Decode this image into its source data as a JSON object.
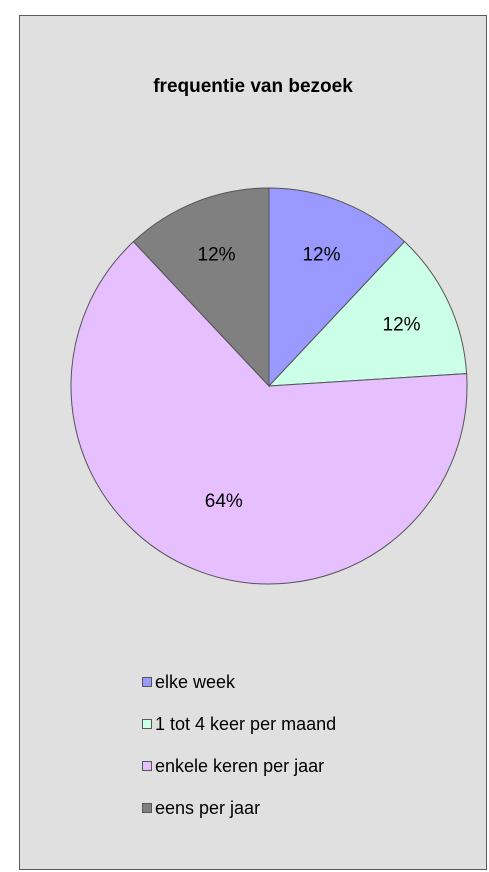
{
  "chart_data": {
    "type": "pie",
    "title": "frequentie van bezoek",
    "categories": [
      "elke week",
      "1 tot 4 keer per maand",
      "enkele keren per jaar",
      "eens per jaar"
    ],
    "values": [
      12,
      12,
      64,
      12
    ],
    "labels": [
      "12%",
      "12%",
      "64%",
      "12%"
    ],
    "colors": [
      "#9999ff",
      "#ccffe8",
      "#e6bfff",
      "#808080"
    ],
    "legend_position": "bottom",
    "background": "#e0e0e0"
  }
}
